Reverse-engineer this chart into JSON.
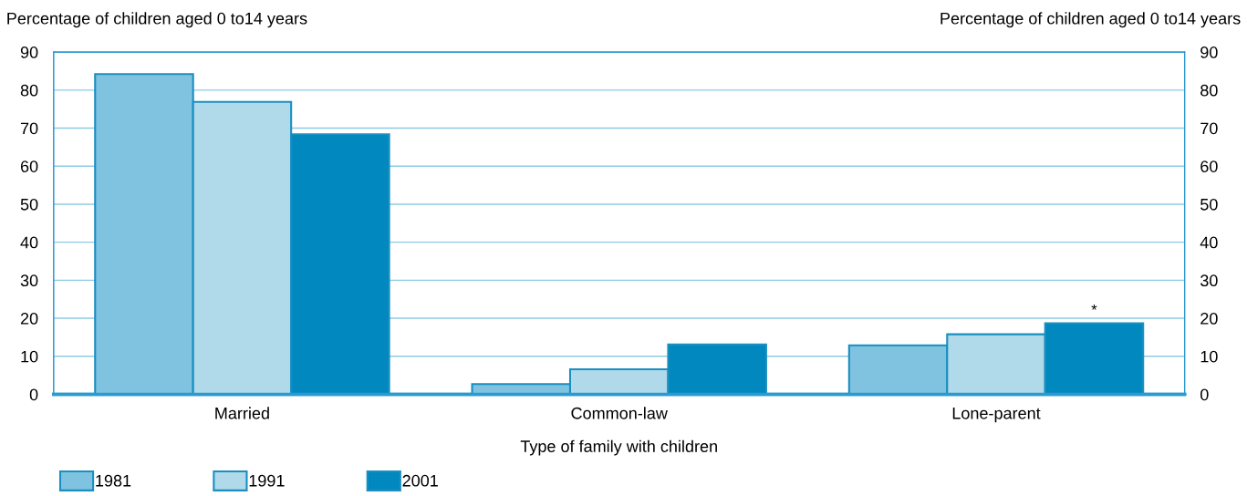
{
  "chart_data": {
    "type": "bar",
    "categories": [
      "Married",
      "Common-law",
      "Lone-parent"
    ],
    "series": [
      {
        "name": "1981",
        "color": "#7fc3e0",
        "values": [
          84.2,
          2.7,
          12.9
        ]
      },
      {
        "name": "1991",
        "color": "#b0d9ea",
        "values": [
          76.9,
          6.6,
          15.8
        ]
      },
      {
        "name": "2001",
        "color": "#0088bf",
        "values": [
          68.4,
          13.1,
          18.7
        ]
      }
    ],
    "xlabel": "Type of family with children",
    "ylabel": "Percentage of children aged 0 to14 years",
    "y2label": "Percentage of children aged 0 to14 years",
    "ylim": [
      0,
      90
    ],
    "yticks": [
      0,
      10,
      20,
      30,
      40,
      50,
      60,
      70,
      80,
      90
    ],
    "y2lim": [
      0,
      90
    ],
    "y2ticks": [
      0,
      10,
      20,
      30,
      40,
      50,
      60,
      70,
      80,
      90
    ],
    "annotations": [
      "*"
    ],
    "grid": "y",
    "legend": "bottom left"
  }
}
